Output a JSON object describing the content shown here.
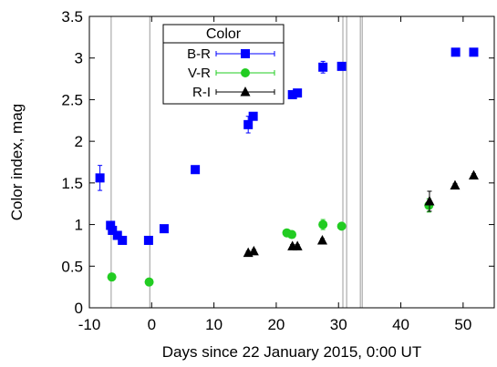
{
  "chart_data": {
    "type": "scatter",
    "xlabel": "Days since 22 January 2015, 0:00 UT",
    "ylabel": "Color index, mag",
    "xlim": [
      -10,
      55
    ],
    "ylim": [
      0,
      3.5
    ],
    "xticks": [
      -10,
      0,
      10,
      20,
      30,
      40,
      50
    ],
    "yticks": [
      0,
      0.5,
      1,
      1.5,
      2,
      2.5,
      3,
      3.5
    ],
    "xtick_labels": [
      "-10",
      "0",
      "10",
      "20",
      "30",
      "40",
      "50"
    ],
    "ytick_labels": [
      "0",
      "0.5",
      "1",
      "1.5",
      "2",
      "2.5",
      "3",
      "3.5"
    ],
    "grid": false,
    "legend": {
      "title": "Color",
      "placement": "top-center"
    },
    "vertical_lines": [
      -6.5,
      -0.3,
      30.7,
      31.3,
      33.5,
      33.8
    ],
    "series": [
      {
        "name": "B-R",
        "marker": "square",
        "color": "#0000ff",
        "x": [
          -8.3,
          -6.6,
          -6.3,
          -5.5,
          -4.7,
          -0.5,
          2.0,
          7.0,
          15.5,
          16.3,
          22.6,
          23.4,
          27.5,
          30.5,
          48.8,
          51.7
        ],
        "y": [
          1.56,
          0.99,
          0.93,
          0.87,
          0.81,
          0.81,
          0.95,
          1.66,
          2.2,
          2.3,
          2.56,
          2.58,
          2.89,
          2.9,
          3.07,
          3.07
        ],
        "yerr": [
          0.15,
          0.04,
          0.03,
          0.03,
          0.02,
          0.02,
          0.02,
          0.02,
          0.1,
          0.03,
          0.04,
          0.02,
          0.07,
          0.02,
          0.02,
          0.02
        ]
      },
      {
        "name": "V-R",
        "marker": "circle",
        "color": "#22cc22",
        "x": [
          -6.4,
          -0.4,
          21.7,
          22.5,
          27.5,
          30.5,
          44.5
        ],
        "y": [
          0.37,
          0.31,
          0.9,
          0.88,
          1.0,
          0.98,
          1.23
        ],
        "yerr": [
          0.02,
          0.02,
          0.02,
          0.02,
          0.06,
          0.02,
          0.08
        ]
      },
      {
        "name": "R-I",
        "marker": "triangle",
        "color": "#000000",
        "x": [
          15.5,
          16.4,
          22.6,
          23.4,
          27.4,
          44.6,
          48.7,
          51.7
        ],
        "y": [
          0.66,
          0.68,
          0.74,
          0.74,
          0.81,
          1.28,
          1.47,
          1.59
        ],
        "yerr": [
          0.02,
          0.02,
          0.02,
          0.02,
          0.02,
          0.12,
          0.02,
          0.02
        ]
      }
    ]
  }
}
